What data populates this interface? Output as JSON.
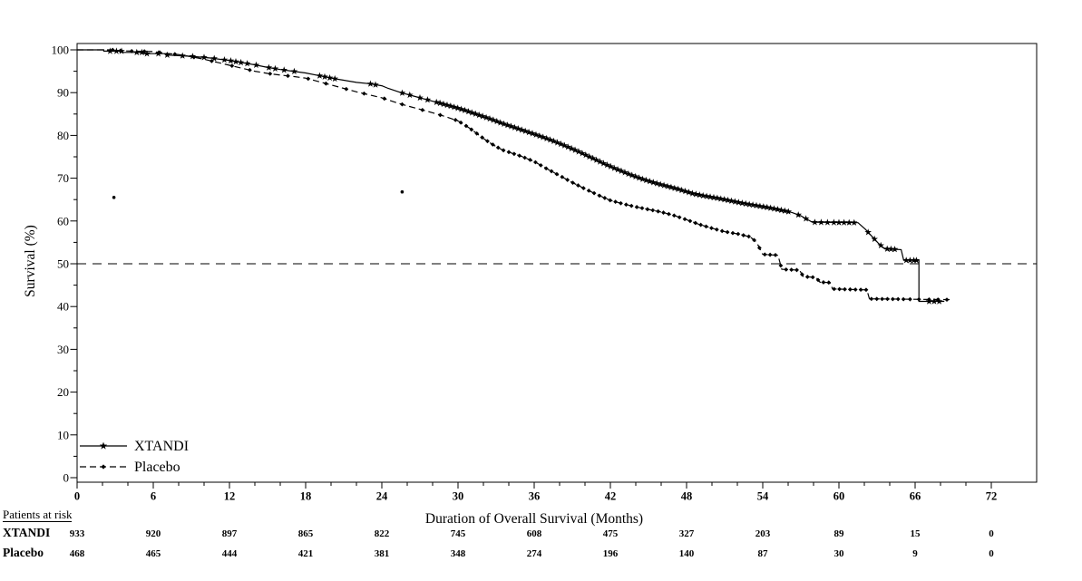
{
  "colors": {
    "foreground": "#000000",
    "background": "#ffffff"
  },
  "chart_data": {
    "type": "line",
    "subtype": "kaplan-meier-step-curve",
    "title": "",
    "xlabel": "Duration of Overall Survival (Months)",
    "ylabel": "Survival (%)",
    "xlim": [
      0,
      72
    ],
    "ylim": [
      0,
      100
    ],
    "xticks_major": [
      0,
      6,
      12,
      18,
      24,
      30,
      36,
      42,
      48,
      54,
      60,
      66,
      72
    ],
    "xticks_minor_step": 2,
    "yticks_major": [
      0,
      10,
      20,
      30,
      40,
      50,
      60,
      70,
      80,
      90,
      100
    ],
    "yticks_minor_step": 5,
    "grid": false,
    "reference_line": {
      "y": 50,
      "style": "dashed"
    },
    "legend_position": "bottom-left-inside",
    "series": [
      {
        "name": "XTANDI",
        "line": "solid",
        "marker": "star",
        "points": [
          [
            0,
            100
          ],
          [
            2.1,
            100
          ],
          [
            2.1,
            99.7
          ],
          [
            3.6,
            99.7
          ],
          [
            3.6,
            99.4
          ],
          [
            5.2,
            99.4
          ],
          [
            5.2,
            99.1
          ],
          [
            7,
            99.1
          ],
          [
            7,
            98.8
          ],
          [
            9,
            98.5
          ],
          [
            10.5,
            98.1
          ],
          [
            12,
            97.5
          ],
          [
            13,
            97
          ],
          [
            14,
            96.5
          ],
          [
            15,
            95.9
          ],
          [
            16,
            95.4
          ],
          [
            17,
            95
          ],
          [
            18,
            94.6
          ],
          [
            19,
            94
          ],
          [
            20,
            93.4
          ],
          [
            21,
            92.9
          ],
          [
            22,
            92.4
          ],
          [
            23,
            92.1
          ],
          [
            24,
            91.6
          ],
          [
            24.5,
            91
          ],
          [
            25.5,
            90
          ],
          [
            26.5,
            89.2
          ],
          [
            27.5,
            88.4
          ],
          [
            28.5,
            87.6
          ],
          [
            29.5,
            86.8
          ],
          [
            30.5,
            85.9
          ],
          [
            31.5,
            84.9
          ],
          [
            32.5,
            83.9
          ],
          [
            33.5,
            82.8
          ],
          [
            34.5,
            81.8
          ],
          [
            35.5,
            80.8
          ],
          [
            36.5,
            79.8
          ],
          [
            37.5,
            78.7
          ],
          [
            38.5,
            77.5
          ],
          [
            39.5,
            76.2
          ],
          [
            40.5,
            74.8
          ],
          [
            41.5,
            73.4
          ],
          [
            42.5,
            72.1
          ],
          [
            43.5,
            70.9
          ],
          [
            44.5,
            69.8
          ],
          [
            45.5,
            68.9
          ],
          [
            46.5,
            68.1
          ],
          [
            47.5,
            67.3
          ],
          [
            48.5,
            66.4
          ],
          [
            49.5,
            65.8
          ],
          [
            50.5,
            65.3
          ],
          [
            51.5,
            64.7
          ],
          [
            52.5,
            64.1
          ],
          [
            53.5,
            63.6
          ],
          [
            54.5,
            63.1
          ],
          [
            55.5,
            62.5
          ],
          [
            56.3,
            62
          ],
          [
            57,
            61.2
          ],
          [
            57.9,
            59.7
          ],
          [
            61.5,
            59.6
          ],
          [
            62.1,
            58
          ],
          [
            62.6,
            56.4
          ],
          [
            63.1,
            54.8
          ],
          [
            63.6,
            53.5
          ],
          [
            64.9,
            53.3
          ],
          [
            65.1,
            50.8
          ],
          [
            66.3,
            50.8
          ],
          [
            66.3,
            41.2
          ],
          [
            68.3,
            41.2
          ]
        ],
        "censor_marks": {
          "sparse": [
            2.6,
            3.1,
            3.5,
            4.7,
            5.1,
            5.5,
            6.4,
            7.1,
            8.3,
            9.1,
            10,
            10.8,
            11.6,
            12.1,
            12.5,
            12.9,
            13.4,
            14.1,
            15.1,
            15.6,
            16.3,
            17.1,
            19.1,
            19.5,
            19.9,
            20.3,
            23.1,
            23.5,
            25.6,
            26.2,
            27,
            27.6,
            56.8,
            57.4,
            58.1,
            58.6,
            59.1,
            59.6,
            60,
            60.4,
            60.8,
            61.2,
            62.3,
            62.8,
            63.3,
            63.8,
            64.1,
            64.4,
            65.3,
            65.6,
            65.9,
            66.1,
            67.1,
            67.5,
            67.9
          ],
          "dense_ranges": [
            [
              28.3,
              56.3,
              0.28
            ]
          ]
        }
      },
      {
        "name": "Placebo",
        "line": "dashed",
        "marker": "diamond",
        "points": [
          [
            0,
            100
          ],
          [
            3,
            100
          ],
          [
            3,
            99.8
          ],
          [
            6,
            99.6
          ],
          [
            7,
            99.2
          ],
          [
            8,
            98.9
          ],
          [
            9,
            98.4
          ],
          [
            10,
            97.8
          ],
          [
            11,
            97.1
          ],
          [
            12,
            96.4
          ],
          [
            13,
            95.7
          ],
          [
            14,
            95
          ],
          [
            15,
            94.5
          ],
          [
            16,
            94.1
          ],
          [
            17,
            93.8
          ],
          [
            18,
            93.4
          ],
          [
            19,
            92.6
          ],
          [
            20,
            91.8
          ],
          [
            21,
            91
          ],
          [
            22,
            90.2
          ],
          [
            23,
            89.5
          ],
          [
            24,
            88.8
          ],
          [
            25,
            87.8
          ],
          [
            26,
            86.9
          ],
          [
            27,
            86.1
          ],
          [
            28,
            85.3
          ],
          [
            29,
            84.4
          ],
          [
            30,
            83.4
          ],
          [
            30.5,
            82.5
          ],
          [
            31,
            81.5
          ],
          [
            31.5,
            80.4
          ],
          [
            32,
            79.3
          ],
          [
            32.5,
            78.3
          ],
          [
            33,
            77.4
          ],
          [
            33.5,
            76.6
          ],
          [
            34.2,
            75.9
          ],
          [
            35,
            75.1
          ],
          [
            36,
            73.9
          ],
          [
            37,
            72.2
          ],
          [
            38,
            70.6
          ],
          [
            39,
            69
          ],
          [
            40,
            67.5
          ],
          [
            41,
            66.1
          ],
          [
            42,
            64.8
          ],
          [
            43,
            64
          ],
          [
            44,
            63.3
          ],
          [
            45,
            62.7
          ],
          [
            46,
            62.1
          ],
          [
            47,
            61.3
          ],
          [
            48,
            60.3
          ],
          [
            49,
            59.2
          ],
          [
            50,
            58.3
          ],
          [
            51,
            57.5
          ],
          [
            52,
            57
          ],
          [
            53,
            56.3
          ],
          [
            53.5,
            55.1
          ],
          [
            54,
            52.2
          ],
          [
            55.2,
            52
          ],
          [
            55.5,
            48.7
          ],
          [
            56.9,
            48.5
          ],
          [
            57.2,
            47
          ],
          [
            58.2,
            46.8
          ],
          [
            58.5,
            45.7
          ],
          [
            59.3,
            45.6
          ],
          [
            59.5,
            44.1
          ],
          [
            62.2,
            43.9
          ],
          [
            62.4,
            41.8
          ],
          [
            68.9,
            41.6
          ]
        ],
        "censor_marks": {
          "sparse": [
            2.8,
            3.4,
            4.3,
            5.3,
            6.5,
            7.7,
            9.2,
            10.6,
            12.2,
            13.6,
            15.2,
            16.6,
            18.2,
            19.6,
            21.2,
            22.6,
            24.2,
            25.6,
            27.2,
            28.6,
            65.6,
            66.3,
            67.1,
            67.8,
            68.5
          ],
          "dense_ranges": [
            [
              29.8,
              65.2,
              0.42
            ]
          ]
        }
      }
    ],
    "stray_points": [
      [
        2.9,
        65.5
      ],
      [
        25.6,
        66.8
      ]
    ]
  },
  "legend": {
    "items": [
      {
        "label": "XTANDI",
        "line": "solid",
        "marker": "star"
      },
      {
        "label": "Placebo",
        "line": "dashed",
        "marker": "diamond"
      }
    ]
  },
  "at_risk": {
    "header": "Patients at risk",
    "columns_months": [
      0,
      6,
      12,
      18,
      24,
      30,
      36,
      42,
      48,
      54,
      60,
      66,
      72
    ],
    "rows": [
      {
        "label": "XTANDI",
        "values": [
          933,
          920,
          897,
          865,
          822,
          745,
          608,
          475,
          327,
          203,
          89,
          15,
          0
        ]
      },
      {
        "label": "Placebo",
        "values": [
          468,
          465,
          444,
          421,
          381,
          348,
          274,
          196,
          140,
          87,
          30,
          9,
          0
        ]
      }
    ]
  }
}
